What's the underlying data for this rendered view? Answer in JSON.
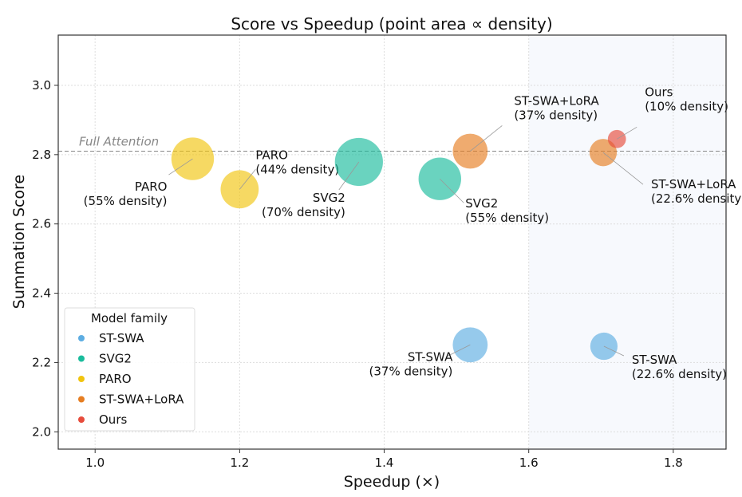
{
  "chart_data": {
    "type": "scatter",
    "title": "Score vs Speedup (point area ∝ density)",
    "xlabel": "Speedup (×)",
    "ylabel": "Summation Score",
    "xlim": [
      0.949,
      1.873
    ],
    "ylim": [
      1.95,
      3.145
    ],
    "xticks": [
      "1.0",
      "1.2",
      "1.4",
      "1.6",
      "1.8"
    ],
    "yticks": [
      "2.0",
      "2.2",
      "2.4",
      "2.6",
      "2.8",
      "3.0"
    ],
    "grid": true,
    "shaded_region_x": [
      1.6,
      1.873
    ],
    "reference_line": {
      "label": "Full Attention",
      "y": 2.81
    },
    "legend": {
      "title": "Model family",
      "placement": "lower-left",
      "entries": [
        {
          "name": "ST-SWA",
          "color": "#5DADE2"
        },
        {
          "name": "SVG2",
          "color": "#1ABC9C"
        },
        {
          "name": "PARO",
          "color": "#F1C40F"
        },
        {
          "name": "ST-SWA+LoRA",
          "color": "#E67E22"
        },
        {
          "name": "Ours",
          "color": "#E74C3C"
        }
      ]
    },
    "points": [
      {
        "family": "PARO",
        "x": 1.135,
        "y": 2.788,
        "density": 55,
        "label": [
          "PARO",
          "(55% density)"
        ]
      },
      {
        "family": "PARO",
        "x": 1.2,
        "y": 2.7,
        "density": 44,
        "label": [
          "PARO",
          "(44% density)"
        ]
      },
      {
        "family": "SVG2",
        "x": 1.365,
        "y": 2.779,
        "density": 70,
        "label": [
          "SVG2",
          "(70% density)"
        ]
      },
      {
        "family": "SVG2",
        "x": 1.477,
        "y": 2.73,
        "density": 55,
        "label": [
          "SVG2",
          "(55% density)"
        ]
      },
      {
        "family": "ST-SWA+LoRA",
        "x": 1.519,
        "y": 2.81,
        "density": 37,
        "label": [
          "ST-SWA+LoRA",
          "(37% density)"
        ]
      },
      {
        "family": "ST-SWA+LoRA",
        "x": 1.703,
        "y": 2.806,
        "density": 22.6,
        "label": [
          "ST-SWA+LoRA",
          "(22.6% density)"
        ]
      },
      {
        "family": "Ours",
        "x": 1.722,
        "y": 2.845,
        "density": 10,
        "label": [
          "Ours",
          "(10% density)"
        ]
      },
      {
        "family": "ST-SWA",
        "x": 1.519,
        "y": 2.251,
        "density": 37,
        "label": [
          "ST-SWA",
          "(37% density)"
        ]
      },
      {
        "family": "ST-SWA",
        "x": 1.704,
        "y": 2.247,
        "density": 22.6,
        "label": [
          "ST-SWA",
          "(22.6% density)"
        ]
      }
    ]
  }
}
